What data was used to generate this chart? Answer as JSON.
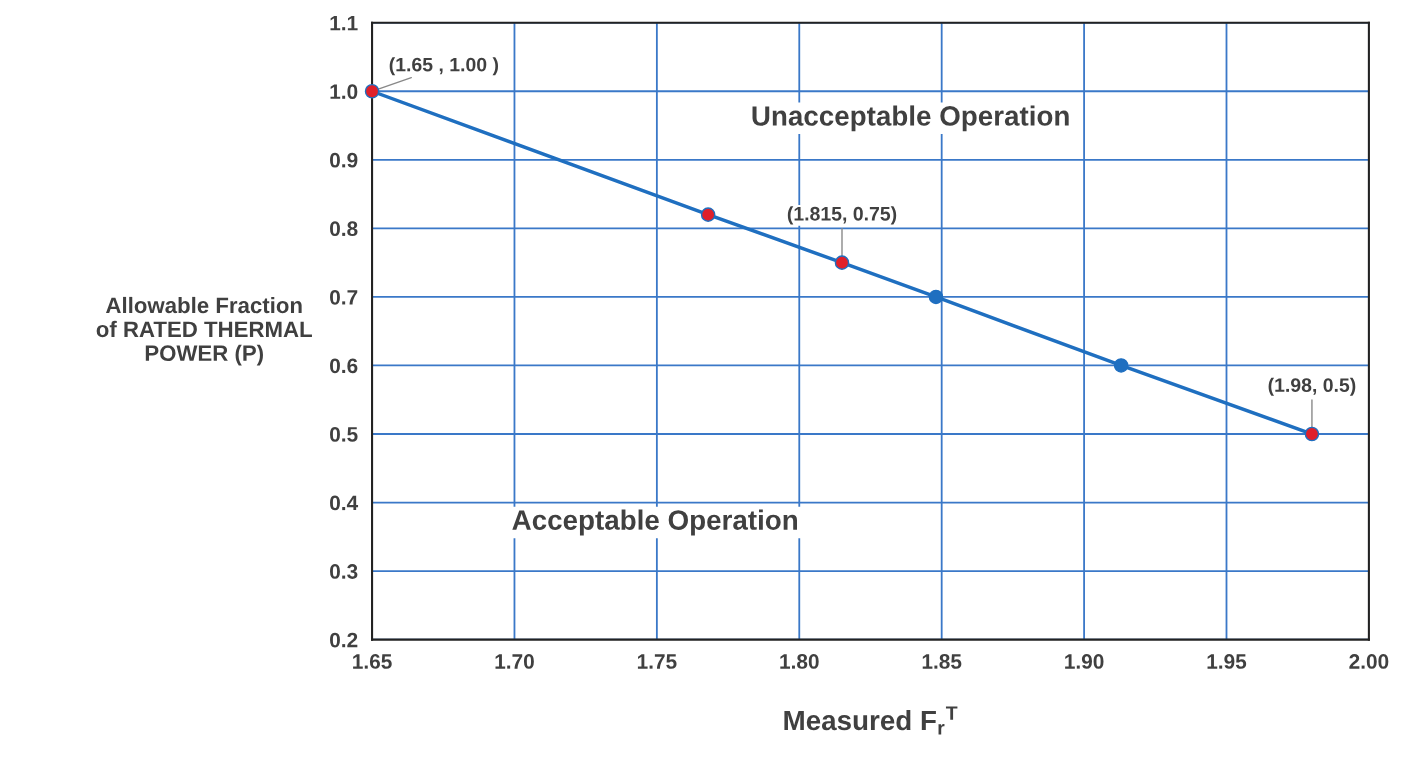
{
  "chart_data": {
    "type": "line",
    "xlabel": "Measured F$_{r}$$^{T}$",
    "ylabel": "Allowable Fraction\nof RATED THERMAL\nPOWER (P)",
    "x": [
      1.65,
      1.768,
      1.815,
      1.848,
      1.913,
      1.98
    ],
    "series": [
      {
        "color": "#1f6fc0",
        "values": [
          1.0,
          0.82,
          0.75,
          0.7,
          0.6,
          0.5
        ],
        "colors": [
          "#e0202a",
          "#e0202a",
          "#e0202a",
          "#1f6fc0",
          "#1f6fc0",
          "#e0202a"
        ]
      }
    ],
    "marker": "circle",
    "line_style": "solid",
    "grid": true,
    "xlim": [
      1.65,
      2.0
    ],
    "xticks": [
      1.65,
      {
        "value": 1.7,
        "label": "1.70"
      },
      1.75,
      {
        "value": 1.8,
        "label": "1.80"
      },
      1.85,
      {
        "value": 1.9,
        "label": "1.90"
      },
      1.95,
      {
        "value": 2.0,
        "label": "2.00"
      }
    ],
    "ylim": [
      0.2,
      1.1
    ],
    "yticks": [
      0.2,
      0.3,
      0.4,
      0.5,
      0.6,
      0.7,
      0.8,
      0.9,
      {
        "value": 1.0,
        "label": "1.0"
      },
      1.1
    ],
    "annotations": [
      {
        "text": "(1.65 , 1.00 )",
        "x": 1.65,
        "y": 1.0
      },
      {
        "text": "(1.815, 0.75)",
        "x": 1.815,
        "y": 0.75
      },
      {
        "text": "(1.98, 0.5)",
        "x": 1.98,
        "y": 0.5
      },
      "Unacceptable Operation",
      "Acceptable Operation"
    ]
  }
}
